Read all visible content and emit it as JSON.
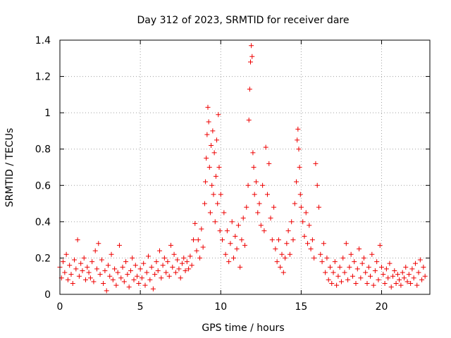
{
  "chart_data": {
    "type": "scatter",
    "title": "Day 312 of 2023, SRMTID for receiver dare",
    "xlabel": "GPS time / hours",
    "ylabel": "SRMTID / TECUs",
    "xlim": [
      0,
      23
    ],
    "ylim": [
      0,
      1.4
    ],
    "x_ticks": [
      0,
      5,
      10,
      15,
      20
    ],
    "y_ticks": [
      0,
      0.2,
      0.4,
      0.6,
      0.8,
      1,
      1.2,
      1.4
    ],
    "x_tick_labels": [
      "0",
      "5",
      "10",
      "15",
      "20"
    ],
    "y_tick_labels": [
      "0",
      "0.2",
      "0.4",
      "0.6",
      "0.8",
      "1",
      "1.2",
      "1.4"
    ],
    "grid": true,
    "marker": "plus",
    "color": "#ee0000",
    "series": [
      {
        "name": "SRMTID",
        "points": [
          [
            0.0,
            0.15
          ],
          [
            0.1,
            0.09
          ],
          [
            0.2,
            0.18
          ],
          [
            0.3,
            0.12
          ],
          [
            0.4,
            0.22
          ],
          [
            0.5,
            0.08
          ],
          [
            0.6,
            0.16
          ],
          [
            0.7,
            0.11
          ],
          [
            0.8,
            0.06
          ],
          [
            0.9,
            0.19
          ],
          [
            1.0,
            0.14
          ],
          [
            1.1,
            0.3
          ],
          [
            1.2,
            0.1
          ],
          [
            1.3,
            0.17
          ],
          [
            1.4,
            0.13
          ],
          [
            1.5,
            0.2
          ],
          [
            1.6,
            0.08
          ],
          [
            1.7,
            0.15
          ],
          [
            1.8,
            0.12
          ],
          [
            1.9,
            0.09
          ],
          [
            2.0,
            0.18
          ],
          [
            2.1,
            0.07
          ],
          [
            2.2,
            0.24
          ],
          [
            2.3,
            0.14
          ],
          [
            2.4,
            0.28
          ],
          [
            2.5,
            0.11
          ],
          [
            2.6,
            0.19
          ],
          [
            2.7,
            0.06
          ],
          [
            2.8,
            0.13
          ],
          [
            2.9,
            0.02
          ],
          [
            3.0,
            0.16
          ],
          [
            3.1,
            0.1
          ],
          [
            3.2,
            0.22
          ],
          [
            3.3,
            0.08
          ],
          [
            3.4,
            0.14
          ],
          [
            3.5,
            0.05
          ],
          [
            3.6,
            0.12
          ],
          [
            3.7,
            0.27
          ],
          [
            3.8,
            0.09
          ],
          [
            3.9,
            0.15
          ],
          [
            4.0,
            0.07
          ],
          [
            4.1,
            0.18
          ],
          [
            4.2,
            0.11
          ],
          [
            4.3,
            0.04
          ],
          [
            4.4,
            0.13
          ],
          [
            4.5,
            0.2
          ],
          [
            4.6,
            0.08
          ],
          [
            4.7,
            0.16
          ],
          [
            4.8,
            0.1
          ],
          [
            4.9,
            0.06
          ],
          [
            5.0,
            0.14
          ],
          [
            5.1,
            0.09
          ],
          [
            5.2,
            0.17
          ],
          [
            5.3,
            0.05
          ],
          [
            5.4,
            0.12
          ],
          [
            5.5,
            0.21
          ],
          [
            5.6,
            0.08
          ],
          [
            5.7,
            0.15
          ],
          [
            5.8,
            0.03
          ],
          [
            5.9,
            0.11
          ],
          [
            6.0,
            0.18
          ],
          [
            6.1,
            0.13
          ],
          [
            6.2,
            0.24
          ],
          [
            6.3,
            0.09
          ],
          [
            6.4,
            0.16
          ],
          [
            6.5,
            0.2
          ],
          [
            6.6,
            0.12
          ],
          [
            6.7,
            0.18
          ],
          [
            6.8,
            0.1
          ],
          [
            6.9,
            0.27
          ],
          [
            7.0,
            0.15
          ],
          [
            7.1,
            0.22
          ],
          [
            7.2,
            0.12
          ],
          [
            7.3,
            0.19
          ],
          [
            7.4,
            0.14
          ],
          [
            7.5,
            0.09
          ],
          [
            7.6,
            0.17
          ],
          [
            7.7,
            0.2
          ],
          [
            7.8,
            0.13
          ],
          [
            7.9,
            0.18
          ],
          [
            8.0,
            0.14
          ],
          [
            8.1,
            0.21
          ],
          [
            8.2,
            0.16
          ],
          [
            8.3,
            0.3
          ],
          [
            8.4,
            0.39
          ],
          [
            8.5,
            0.24
          ],
          [
            8.6,
            0.3
          ],
          [
            8.7,
            0.2
          ],
          [
            8.8,
            0.36
          ],
          [
            8.9,
            0.26
          ],
          [
            9.0,
            0.5
          ],
          [
            9.05,
            0.62
          ],
          [
            9.1,
            0.75
          ],
          [
            9.15,
            0.88
          ],
          [
            9.2,
            1.03
          ],
          [
            9.25,
            0.95
          ],
          [
            9.3,
            0.7
          ],
          [
            9.35,
            0.45
          ],
          [
            9.4,
            0.82
          ],
          [
            9.45,
            0.6
          ],
          [
            9.5,
            0.9
          ],
          [
            9.55,
            0.55
          ],
          [
            9.6,
            0.78
          ],
          [
            9.65,
            0.4
          ],
          [
            9.7,
            0.65
          ],
          [
            9.75,
            0.85
          ],
          [
            9.8,
            0.5
          ],
          [
            9.85,
            0.99
          ],
          [
            9.9,
            0.7
          ],
          [
            9.95,
            0.35
          ],
          [
            10.0,
            0.55
          ],
          [
            10.1,
            0.3
          ],
          [
            10.2,
            0.45
          ],
          [
            10.3,
            0.22
          ],
          [
            10.4,
            0.35
          ],
          [
            10.5,
            0.18
          ],
          [
            10.6,
            0.28
          ],
          [
            10.7,
            0.4
          ],
          [
            10.8,
            0.2
          ],
          [
            10.9,
            0.32
          ],
          [
            11.0,
            0.25
          ],
          [
            11.1,
            0.38
          ],
          [
            11.2,
            0.15
          ],
          [
            11.3,
            0.3
          ],
          [
            11.4,
            0.42
          ],
          [
            11.5,
            0.27
          ],
          [
            11.6,
            0.48
          ],
          [
            11.7,
            0.6
          ],
          [
            11.75,
            0.96
          ],
          [
            11.8,
            1.13
          ],
          [
            11.85,
            1.28
          ],
          [
            11.9,
            1.37
          ],
          [
            11.95,
            1.31
          ],
          [
            12.0,
            0.78
          ],
          [
            12.05,
            0.7
          ],
          [
            12.1,
            0.55
          ],
          [
            12.2,
            0.62
          ],
          [
            12.3,
            0.45
          ],
          [
            12.4,
            0.5
          ],
          [
            12.5,
            0.38
          ],
          [
            12.6,
            0.6
          ],
          [
            12.7,
            0.35
          ],
          [
            12.8,
            0.81
          ],
          [
            12.9,
            0.55
          ],
          [
            13.0,
            0.72
          ],
          [
            13.1,
            0.42
          ],
          [
            13.2,
            0.3
          ],
          [
            13.3,
            0.48
          ],
          [
            13.4,
            0.25
          ],
          [
            13.5,
            0.18
          ],
          [
            13.6,
            0.3
          ],
          [
            13.7,
            0.15
          ],
          [
            13.8,
            0.22
          ],
          [
            13.9,
            0.12
          ],
          [
            14.0,
            0.2
          ],
          [
            14.1,
            0.28
          ],
          [
            14.2,
            0.35
          ],
          [
            14.3,
            0.22
          ],
          [
            14.4,
            0.4
          ],
          [
            14.5,
            0.3
          ],
          [
            14.6,
            0.5
          ],
          [
            14.7,
            0.62
          ],
          [
            14.75,
            0.85
          ],
          [
            14.8,
            0.91
          ],
          [
            14.85,
            0.8
          ],
          [
            14.9,
            0.7
          ],
          [
            14.95,
            0.55
          ],
          [
            15.0,
            0.48
          ],
          [
            15.1,
            0.4
          ],
          [
            15.2,
            0.32
          ],
          [
            15.3,
            0.45
          ],
          [
            15.4,
            0.28
          ],
          [
            15.5,
            0.38
          ],
          [
            15.6,
            0.25
          ],
          [
            15.7,
            0.3
          ],
          [
            15.8,
            0.2
          ],
          [
            15.9,
            0.72
          ],
          [
            16.0,
            0.6
          ],
          [
            16.1,
            0.48
          ],
          [
            16.2,
            0.22
          ],
          [
            16.3,
            0.18
          ],
          [
            16.4,
            0.28
          ],
          [
            16.5,
            0.12
          ],
          [
            16.6,
            0.2
          ],
          [
            16.7,
            0.08
          ],
          [
            16.8,
            0.15
          ],
          [
            16.9,
            0.06
          ],
          [
            17.0,
            0.12
          ],
          [
            17.1,
            0.18
          ],
          [
            17.2,
            0.05
          ],
          [
            17.3,
            0.1
          ],
          [
            17.4,
            0.15
          ],
          [
            17.5,
            0.07
          ],
          [
            17.6,
            0.2
          ],
          [
            17.7,
            0.12
          ],
          [
            17.8,
            0.28
          ],
          [
            17.9,
            0.08
          ],
          [
            18.0,
            0.15
          ],
          [
            18.1,
            0.22
          ],
          [
            18.2,
            0.1
          ],
          [
            18.3,
            0.18
          ],
          [
            18.4,
            0.06
          ],
          [
            18.5,
            0.14
          ],
          [
            18.6,
            0.25
          ],
          [
            18.7,
            0.09
          ],
          [
            18.8,
            0.17
          ],
          [
            18.9,
            0.2
          ],
          [
            19.0,
            0.12
          ],
          [
            19.1,
            0.06
          ],
          [
            19.2,
            0.15
          ],
          [
            19.3,
            0.1
          ],
          [
            19.4,
            0.22
          ],
          [
            19.5,
            0.05
          ],
          [
            19.6,
            0.13
          ],
          [
            19.7,
            0.18
          ],
          [
            19.8,
            0.08
          ],
          [
            19.9,
            0.27
          ],
          [
            20.0,
            0.15
          ],
          [
            20.1,
            0.11
          ],
          [
            20.2,
            0.06
          ],
          [
            20.3,
            0.14
          ],
          [
            20.4,
            0.09
          ],
          [
            20.5,
            0.17
          ],
          [
            20.6,
            0.04
          ],
          [
            20.7,
            0.1
          ],
          [
            20.8,
            0.13
          ],
          [
            20.9,
            0.06
          ],
          [
            21.0,
            0.11
          ],
          [
            21.1,
            0.08
          ],
          [
            21.2,
            0.05
          ],
          [
            21.3,
            0.12
          ],
          [
            21.4,
            0.09
          ],
          [
            21.5,
            0.15
          ],
          [
            21.6,
            0.07
          ],
          [
            21.7,
            0.11
          ],
          [
            21.8,
            0.06
          ],
          [
            21.9,
            0.14
          ],
          [
            22.0,
            0.09
          ],
          [
            22.1,
            0.17
          ],
          [
            22.2,
            0.05
          ],
          [
            22.3,
            0.12
          ],
          [
            22.4,
            0.19
          ],
          [
            22.5,
            0.08
          ],
          [
            22.6,
            0.15
          ],
          [
            22.7,
            0.1
          ]
        ]
      }
    ]
  }
}
